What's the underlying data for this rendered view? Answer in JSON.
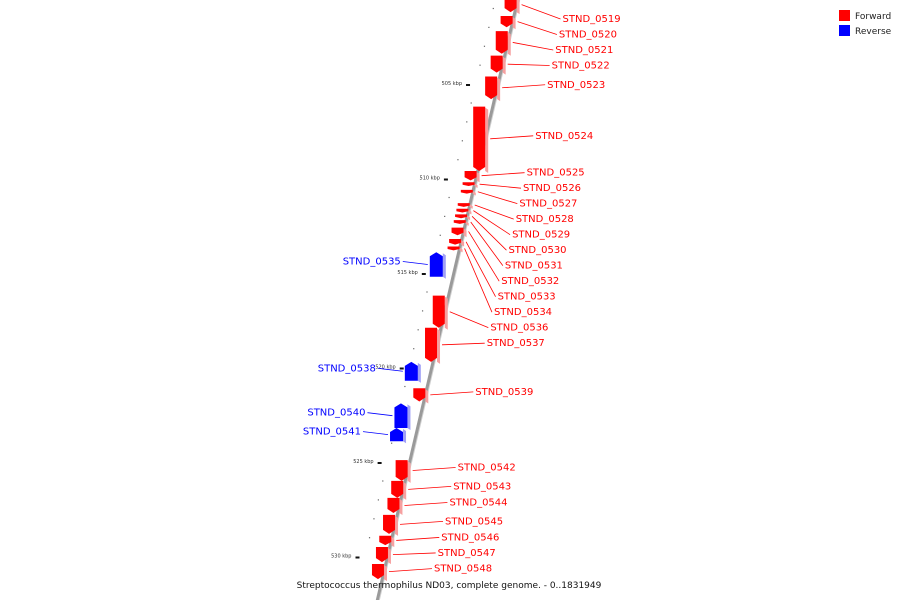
{
  "legend": {
    "items": [
      {
        "label": "Forward",
        "color": "#ff0000"
      },
      {
        "label": "Reverse",
        "color": "#0000ff"
      }
    ]
  },
  "caption": "Streptococcus thermophilus ND03, complete genome. - 0..1831949",
  "colors": {
    "forward": "#ff0000",
    "reverse": "#0000ff",
    "backbone": "#9a9a9a"
  },
  "axis": {
    "unit": "kbp",
    "ticks": [
      {
        "label": "505 kbp",
        "kbp": 505
      },
      {
        "label": "510 kbp",
        "kbp": 510
      },
      {
        "label": "515 kbp",
        "kbp": 515
      },
      {
        "label": "520 kbp",
        "kbp": 520
      },
      {
        "label": "525 kbp",
        "kbp": 525
      },
      {
        "label": "530 kbp",
        "kbp": 530
      }
    ]
  },
  "genes": [
    {
      "id": "STND_0519",
      "strand": "forward",
      "start": 500.4,
      "end": 501.2
    },
    {
      "id": "STND_0520",
      "strand": "forward",
      "start": 501.4,
      "end": 502.0
    },
    {
      "id": "STND_0521",
      "strand": "forward",
      "start": 502.2,
      "end": 503.4
    },
    {
      "id": "STND_0522",
      "strand": "forward",
      "start": 503.5,
      "end": 504.4
    },
    {
      "id": "STND_0523",
      "strand": "forward",
      "start": 504.6,
      "end": 505.8
    },
    {
      "id": "STND_0524",
      "strand": "forward",
      "start": 506.2,
      "end": 509.6
    },
    {
      "id": "STND_0525",
      "strand": "forward",
      "start": 509.6,
      "end": 510.1
    },
    {
      "id": "STND_0526",
      "strand": "forward",
      "start": 510.2,
      "end": 510.4
    },
    {
      "id": "STND_0527",
      "strand": "forward",
      "start": 510.6,
      "end": 510.8
    },
    {
      "id": "STND_0528",
      "strand": "forward",
      "start": 511.3,
      "end": 511.5
    },
    {
      "id": "STND_0529",
      "strand": "forward",
      "start": 511.6,
      "end": 511.8
    },
    {
      "id": "STND_0530",
      "strand": "forward",
      "start": 511.9,
      "end": 512.1
    },
    {
      "id": "STND_0531",
      "strand": "forward",
      "start": 512.2,
      "end": 512.4
    },
    {
      "id": "STND_0532",
      "strand": "forward",
      "start": 512.6,
      "end": 513.0
    },
    {
      "id": "STND_0533",
      "strand": "forward",
      "start": 513.2,
      "end": 513.5
    },
    {
      "id": "STND_0534",
      "strand": "forward",
      "start": 513.6,
      "end": 513.8
    },
    {
      "id": "STND_0535",
      "strand": "reverse",
      "start": 513.9,
      "end": 515.2
    },
    {
      "id": "STND_0536",
      "strand": "forward",
      "start": 516.2,
      "end": 517.9
    },
    {
      "id": "STND_0537",
      "strand": "forward",
      "start": 517.9,
      "end": 519.7
    },
    {
      "id": "STND_0538",
      "strand": "reverse",
      "start": 519.7,
      "end": 520.7
    },
    {
      "id": "STND_0539",
      "strand": "forward",
      "start": 521.1,
      "end": 521.8
    },
    {
      "id": "STND_0540",
      "strand": "reverse",
      "start": 521.9,
      "end": 523.2
    },
    {
      "id": "STND_0541",
      "strand": "reverse",
      "start": 523.2,
      "end": 523.9
    },
    {
      "id": "STND_0542",
      "strand": "forward",
      "start": 524.9,
      "end": 526.0
    },
    {
      "id": "STND_0543",
      "strand": "forward",
      "start": 526.0,
      "end": 526.9
    },
    {
      "id": "STND_0544",
      "strand": "forward",
      "start": 526.9,
      "end": 527.7
    },
    {
      "id": "STND_0545",
      "strand": "forward",
      "start": 527.8,
      "end": 528.8
    },
    {
      "id": "STND_0546",
      "strand": "forward",
      "start": 528.9,
      "end": 529.4
    },
    {
      "id": "STND_0547",
      "strand": "forward",
      "start": 529.5,
      "end": 530.3
    },
    {
      "id": "STND_0548",
      "strand": "forward",
      "start": 530.4,
      "end": 531.2
    }
  ]
}
